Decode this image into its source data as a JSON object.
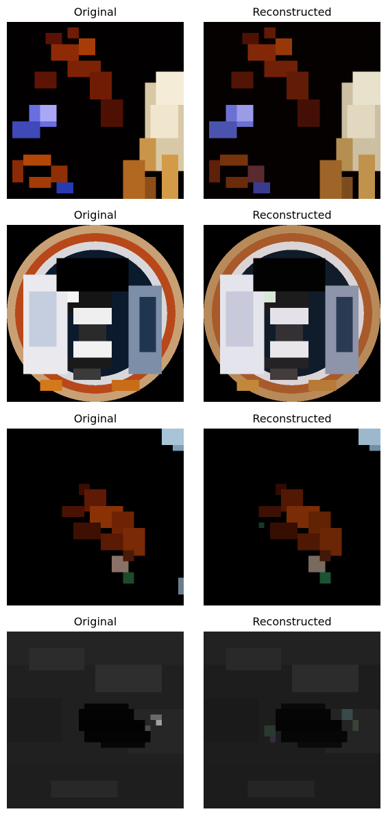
{
  "figure": {
    "panels": [
      {
        "title": "Original",
        "image": "pixelated fox photo with white light object at right"
      },
      {
        "title": "Reconstructed",
        "image": "pixelated fox photo with white light object at right (reconstruction)"
      },
      {
        "title": "Original",
        "image": "pixelated circular emblem with white figure on dark background"
      },
      {
        "title": "Reconstructed",
        "image": "pixelated circular emblem with white figure (reconstruction)"
      },
      {
        "title": "Original",
        "image": "mostly dark image with small reddish animal"
      },
      {
        "title": "Reconstructed",
        "image": "mostly dark image with small reddish animal (reconstruction)"
      },
      {
        "title": "Original",
        "image": "dark grey texture with black blob in centre"
      },
      {
        "title": "Reconstructed",
        "image": "dark grey texture with black blob in centre (reconstruction)"
      }
    ]
  }
}
